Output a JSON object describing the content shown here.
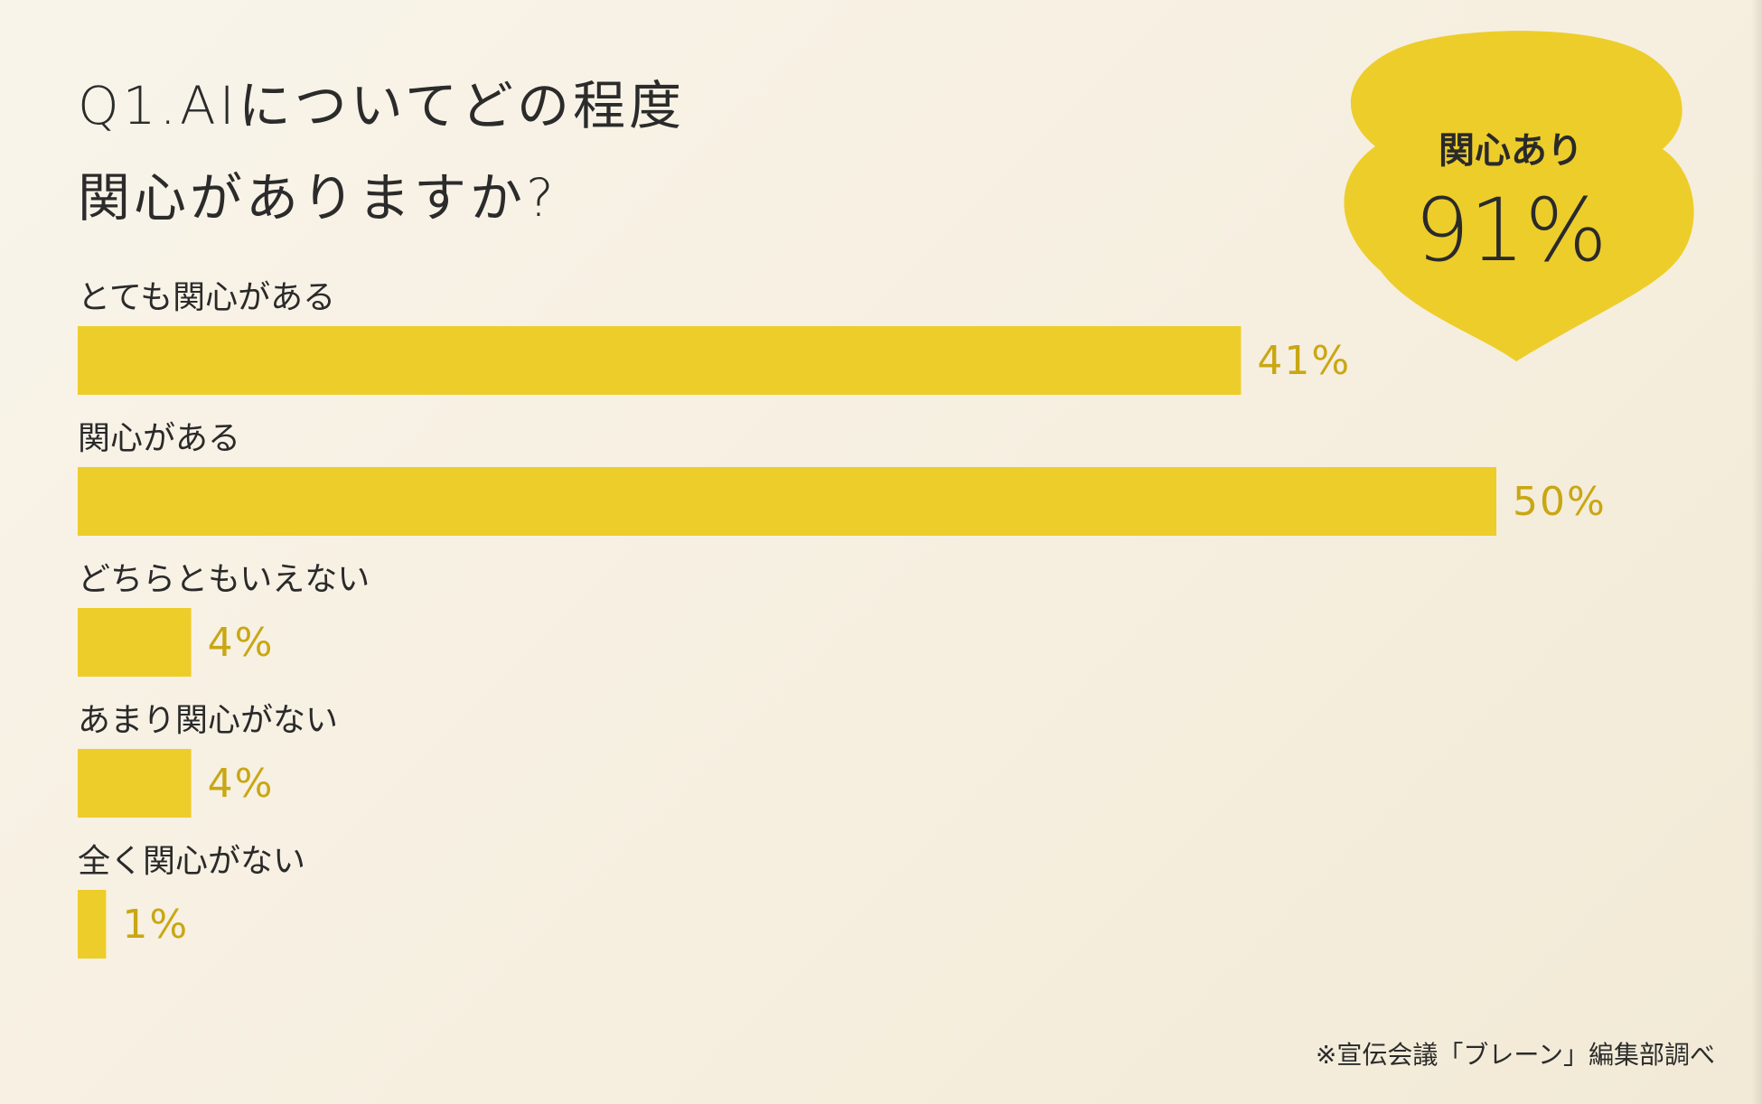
{
  "title_lines": [
    "Q1.AIについてどの程度",
    "関心がありますか?"
  ],
  "callout": {
    "label": "関心あり",
    "value": "91%",
    "color": "#edcd2a"
  },
  "footnote": "※宣伝会議「ブレーン」編集部調べ",
  "colors": {
    "bar": "#edcd2a",
    "value_label": "#c9a714",
    "text": "#2a2a2a"
  },
  "chart_data": {
    "type": "bar",
    "orientation": "horizontal",
    "categories": [
      "とても関心がある",
      "関心がある",
      "どちらともいえない",
      "あまり関心がない",
      "全く関心がない"
    ],
    "values": [
      41,
      50,
      4,
      4,
      1
    ],
    "value_labels": [
      "41%",
      "50%",
      "4%",
      "4%",
      "1%"
    ],
    "xlim": [
      0,
      50
    ],
    "grid": false,
    "legend": "none"
  }
}
